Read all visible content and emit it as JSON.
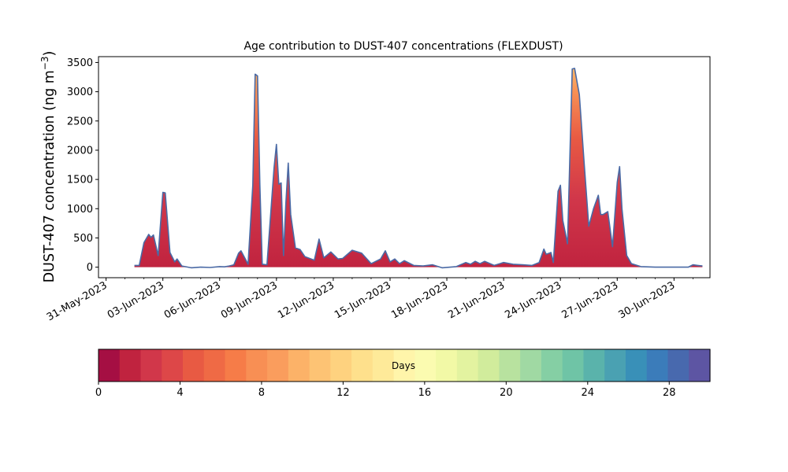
{
  "chart_data": {
    "type": "area",
    "title": "Age contribution to DUST-407 concentrations (FLEXDUST)",
    "ylabel_main": "DUST-407 concentration (ng m",
    "ylabel_sup": "−3",
    "ylabel_close": ")",
    "xlabel": "",
    "ylim": [
      -180,
      3600
    ],
    "y_ticks": [
      0,
      500,
      1000,
      1500,
      2000,
      2500,
      3000,
      3500
    ],
    "x_range_days": [
      -0.4,
      31.9
    ],
    "x_axis_type": "date",
    "x_tick_labels": [
      "31-May-2023",
      "03-Jun-2023",
      "06-Jun-2023",
      "09-Jun-2023",
      "12-Jun-2023",
      "15-Jun-2023",
      "18-Jun-2023",
      "21-Jun-2023",
      "24-Jun-2023",
      "27-Jun-2023",
      "30-Jun-2023"
    ],
    "x_tick_dates": [
      "2023-05-31",
      "2023-06-03",
      "2023-06-06",
      "2023-06-09",
      "2023-06-12",
      "2023-06-15",
      "2023-06-18",
      "2023-06-21",
      "2023-06-24",
      "2023-06-27",
      "2023-06-30"
    ],
    "series": [
      {
        "type": "total-line",
        "color": "#4a6aa5",
        "points": [
          [
            "2023-06-01 12:00",
            30
          ],
          [
            "2023-06-01 18:00",
            30
          ],
          [
            "2023-06-02 00:00",
            420
          ],
          [
            "2023-06-02 06:00",
            560
          ],
          [
            "2023-06-02 09:00",
            510
          ],
          [
            "2023-06-02 12:00",
            550
          ],
          [
            "2023-06-02 18:00",
            200
          ],
          [
            "2023-06-03 00:00",
            1280
          ],
          [
            "2023-06-03 03:00",
            1270
          ],
          [
            "2023-06-03 09:00",
            250
          ],
          [
            "2023-06-03 15:00",
            90
          ],
          [
            "2023-06-03 18:00",
            140
          ],
          [
            "2023-06-04 00:00",
            20
          ],
          [
            "2023-06-04 12:00",
            -10
          ],
          [
            "2023-06-05 00:00",
            0
          ],
          [
            "2023-06-05 12:00",
            -5
          ],
          [
            "2023-06-06 00:00",
            10
          ],
          [
            "2023-06-06 06:00",
            5
          ],
          [
            "2023-06-06 12:00",
            20
          ],
          [
            "2023-06-06 18:00",
            40
          ],
          [
            "2023-06-07 00:00",
            240
          ],
          [
            "2023-06-07 03:00",
            280
          ],
          [
            "2023-06-07 12:00",
            50
          ],
          [
            "2023-06-07 18:00",
            1400
          ],
          [
            "2023-06-07 21:00",
            3300
          ],
          [
            "2023-06-08 00:00",
            3270
          ],
          [
            "2023-06-08 03:00",
            1400
          ],
          [
            "2023-06-08 06:00",
            50
          ],
          [
            "2023-06-08 12:00",
            40
          ],
          [
            "2023-06-08 21:00",
            1700
          ],
          [
            "2023-06-09 00:00",
            2100
          ],
          [
            "2023-06-09 03:00",
            1420
          ],
          [
            "2023-06-09 06:00",
            1440
          ],
          [
            "2023-06-09 09:00",
            200
          ],
          [
            "2023-06-09 12:00",
            1100
          ],
          [
            "2023-06-09 15:00",
            1780
          ],
          [
            "2023-06-09 18:00",
            900
          ],
          [
            "2023-06-10 00:00",
            330
          ],
          [
            "2023-06-10 06:00",
            300
          ],
          [
            "2023-06-10 12:00",
            180
          ],
          [
            "2023-06-11 00:00",
            120
          ],
          [
            "2023-06-11 06:00",
            480
          ],
          [
            "2023-06-11 12:00",
            160
          ],
          [
            "2023-06-11 21:00",
            260
          ],
          [
            "2023-06-12 06:00",
            140
          ],
          [
            "2023-06-12 12:00",
            150
          ],
          [
            "2023-06-13 00:00",
            290
          ],
          [
            "2023-06-13 12:00",
            240
          ],
          [
            "2023-06-14 00:00",
            60
          ],
          [
            "2023-06-14 12:00",
            140
          ],
          [
            "2023-06-14 18:00",
            280
          ],
          [
            "2023-06-15 00:00",
            90
          ],
          [
            "2023-06-15 06:00",
            140
          ],
          [
            "2023-06-15 12:00",
            60
          ],
          [
            "2023-06-15 18:00",
            110
          ],
          [
            "2023-06-16 06:00",
            30
          ],
          [
            "2023-06-16 18:00",
            20
          ],
          [
            "2023-06-17 06:00",
            40
          ],
          [
            "2023-06-17 18:00",
            -10
          ],
          [
            "2023-06-18 12:00",
            10
          ],
          [
            "2023-06-19 00:00",
            80
          ],
          [
            "2023-06-19 06:00",
            50
          ],
          [
            "2023-06-19 12:00",
            100
          ],
          [
            "2023-06-19 18:00",
            60
          ],
          [
            "2023-06-20 00:00",
            100
          ],
          [
            "2023-06-20 12:00",
            30
          ],
          [
            "2023-06-21 00:00",
            80
          ],
          [
            "2023-06-21 12:00",
            50
          ],
          [
            "2023-06-22 00:00",
            40
          ],
          [
            "2023-06-22 12:00",
            30
          ],
          [
            "2023-06-22 21:00",
            80
          ],
          [
            "2023-06-23 03:00",
            310
          ],
          [
            "2023-06-23 06:00",
            220
          ],
          [
            "2023-06-23 12:00",
            250
          ],
          [
            "2023-06-23 15:00",
            80
          ],
          [
            "2023-06-23 21:00",
            1300
          ],
          [
            "2023-06-24 00:00",
            1400
          ],
          [
            "2023-06-24 03:00",
            800
          ],
          [
            "2023-06-24 09:00",
            400
          ],
          [
            "2023-06-24 15:00",
            3390
          ],
          [
            "2023-06-24 18:00",
            3400
          ],
          [
            "2023-06-25 00:00",
            2950
          ],
          [
            "2023-06-25 06:00",
            1800
          ],
          [
            "2023-06-25 12:00",
            700
          ],
          [
            "2023-06-25 18:00",
            1000
          ],
          [
            "2023-06-26 00:00",
            1230
          ],
          [
            "2023-06-26 03:00",
            900
          ],
          [
            "2023-06-26 06:00",
            900
          ],
          [
            "2023-06-26 12:00",
            950
          ],
          [
            "2023-06-26 18:00",
            350
          ],
          [
            "2023-06-27 00:00",
            1450
          ],
          [
            "2023-06-27 03:00",
            1720
          ],
          [
            "2023-06-27 06:00",
            1000
          ],
          [
            "2023-06-27 12:00",
            200
          ],
          [
            "2023-06-27 18:00",
            60
          ],
          [
            "2023-06-28 06:00",
            10
          ],
          [
            "2023-06-29 00:00",
            0
          ],
          [
            "2023-06-30 00:00",
            0
          ],
          [
            "2023-06-30 18:00",
            0
          ],
          [
            "2023-07-01 00:00",
            40
          ],
          [
            "2023-07-01 06:00",
            30
          ],
          [
            "2023-07-01 12:00",
            20
          ]
        ]
      }
    ],
    "colorbar": {
      "label": "Days",
      "range": [
        0,
        30
      ],
      "tick_values": [
        0,
        4,
        8,
        12,
        16,
        20,
        24,
        28
      ],
      "colors": [
        "#a50f43",
        "#c0233f",
        "#d1374a",
        "#dd4748",
        "#e85a43",
        "#ef6a45",
        "#f67c48",
        "#f88f54",
        "#fa9d5d",
        "#fcb268",
        "#fdc374",
        "#fed27f",
        "#fee08c",
        "#feea99",
        "#fff5aa",
        "#fbfbb0",
        "#f2f9a6",
        "#e3f3a0",
        "#d1ec9c",
        "#b8e29f",
        "#a0d9a3",
        "#85cfa4",
        "#6fc4a6",
        "#5ab3ab",
        "#4aa1b2",
        "#3990b8",
        "#3b7cba",
        "#4869ae",
        "#5d55a3"
      ]
    }
  }
}
